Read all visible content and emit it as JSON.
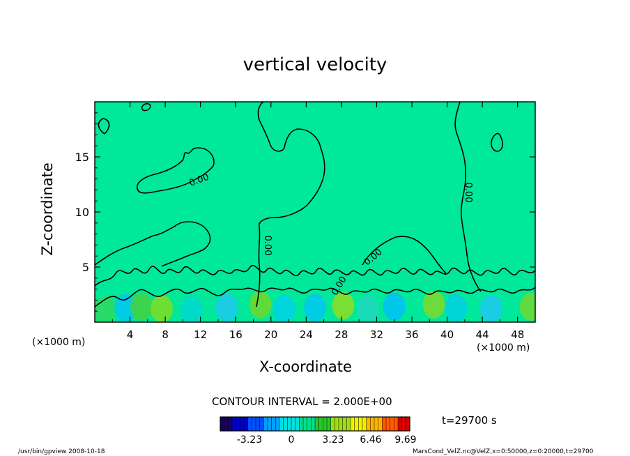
{
  "chart_data": {
    "type": "heatmap",
    "title": "vertical velocity",
    "xlabel": "X-coordinate",
    "ylabel": "Z-coordinate",
    "x_unit_label": "(×1000 m)",
    "y_unit_label": "(×1000 m)",
    "xlim": [
      0,
      50
    ],
    "ylim": [
      0,
      20
    ],
    "x_ticks": [
      4,
      8,
      12,
      16,
      20,
      24,
      28,
      32,
      36,
      40,
      44,
      48
    ],
    "y_ticks": [
      5,
      10,
      15
    ],
    "contour_labels": [
      "0.00",
      "0.00",
      "0.00",
      "0.00",
      "0.00"
    ],
    "contour_interval_text": "CONTOUR INTERVAL = 2.000E+00",
    "time_text": "t=29700  s",
    "colorbar": {
      "ticks": [
        "-3.23",
        "0",
        "3.23",
        "6.46",
        "9.69"
      ],
      "colors": [
        "#1a0060",
        "#0000c8",
        "#0050ff",
        "#00a0ff",
        "#00e0e0",
        "#00e08c",
        "#28c828",
        "#a0dc14",
        "#f0f000",
        "#ffb400",
        "#ff5a00",
        "#dc0000"
      ]
    },
    "background_color": "#00e89a",
    "footer_left": "/usr/bin/gpview   2008-10-18",
    "footer_right": "MarsCond_VelZ.nc@VelZ,x=0:50000,z=0:20000,t=29700"
  }
}
